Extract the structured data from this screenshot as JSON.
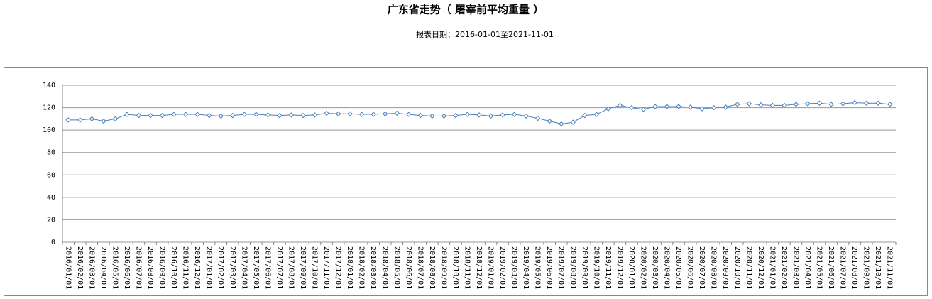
{
  "chart_data": {
    "type": "line",
    "title": "广东省走势（ 屠宰前平均重量 ）",
    "subtitle": "报表日期：2016-01-01至2021-11-01",
    "categories": [
      "2016/01/01",
      "2016/02/01",
      "2016/03/01",
      "2016/04/01",
      "2016/05/01",
      "2016/06/01",
      "2016/07/01",
      "2016/08/01",
      "2016/09/01",
      "2016/10/01",
      "2016/11/01",
      "2016/12/01",
      "2017/01/01",
      "2017/02/01",
      "2017/03/01",
      "2017/04/01",
      "2017/05/01",
      "2017/06/01",
      "2017/07/01",
      "2017/08/01",
      "2017/09/01",
      "2017/10/01",
      "2017/11/01",
      "2017/12/01",
      "2018/01/01",
      "2018/02/01",
      "2018/03/01",
      "2018/04/01",
      "2018/05/01",
      "2018/06/01",
      "2018/07/01",
      "2018/08/01",
      "2018/09/01",
      "2018/10/01",
      "2018/11/01",
      "2018/12/01",
      "2019/01/01",
      "2019/02/01",
      "2019/03/01",
      "2019/04/01",
      "2019/05/01",
      "2019/06/01",
      "2019/07/01",
      "2019/08/01",
      "2019/09/01",
      "2019/10/01",
      "2019/11/01",
      "2019/12/01",
      "2020/01/01",
      "2020/02/01",
      "2020/03/01",
      "2020/04/01",
      "2020/05/01",
      "2020/06/01",
      "2020/07/01",
      "2020/08/01",
      "2020/09/01",
      "2020/10/01",
      "2020/11/01",
      "2020/12/01",
      "2021/01/01",
      "2021/02/01",
      "2021/03/01",
      "2021/04/01",
      "2021/05/01",
      "2021/06/01",
      "2021/07/01",
      "2021/08/01",
      "2021/09/01",
      "2021/10/01",
      "2021/11/01"
    ],
    "values": [
      109,
      109,
      110,
      108,
      110,
      114,
      113,
      113,
      113,
      114,
      114,
      114,
      113,
      112.5,
      113,
      114,
      114,
      113.5,
      113,
      113.5,
      113,
      113.5,
      115,
      114.5,
      114.5,
      114,
      114,
      114.5,
      115,
      114,
      113,
      112.5,
      112.5,
      113,
      114,
      113.5,
      112.5,
      113.5,
      114,
      112.5,
      110.5,
      108,
      105.5,
      107,
      113,
      114,
      119,
      122,
      120,
      118.5,
      121,
      121,
      121,
      120.5,
      119,
      120,
      120.5,
      123,
      123.5,
      122.5,
      122,
      122,
      123,
      123.5,
      124,
      123,
      123.5,
      124.5,
      124,
      124,
      123
    ],
    "color": "#4a7ebb",
    "ylim": [
      0,
      140
    ],
    "yticks": [
      0,
      20,
      40,
      60,
      80,
      100,
      120,
      140
    ],
    "grid": true
  }
}
